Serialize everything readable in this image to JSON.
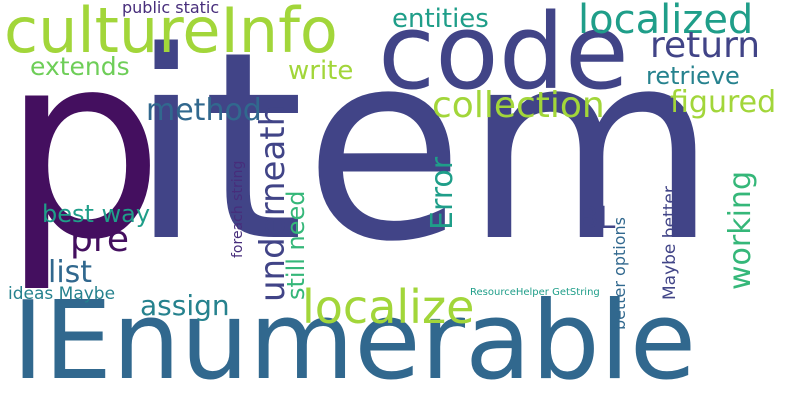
{
  "words": {
    "item": "item",
    "p": "p",
    "ienumerable": "IEnumerable",
    "code": "code",
    "cultureinfo": "cultureInfo",
    "localized": "localized",
    "return": "return",
    "retrieve": "retrieve",
    "entities": "entities",
    "extends": "extends",
    "write": "write",
    "public_static": "public static",
    "collection": "collection",
    "figured": "figured",
    "method": "method",
    "pre": "pre",
    "best_way": "best way",
    "list": "list",
    "ideas_maybe": "ideas Maybe",
    "assign": "assign",
    "localize": "localize",
    "underneath": "underneath",
    "still_need": "still need",
    "error": "Error",
    "bl": "BL",
    "working": "working",
    "foreach_string": "foreach string",
    "maybe_better": "Maybe better",
    "better_options": "better options",
    "resourcehelper_getstring": "ResourceHelper GetString"
  }
}
